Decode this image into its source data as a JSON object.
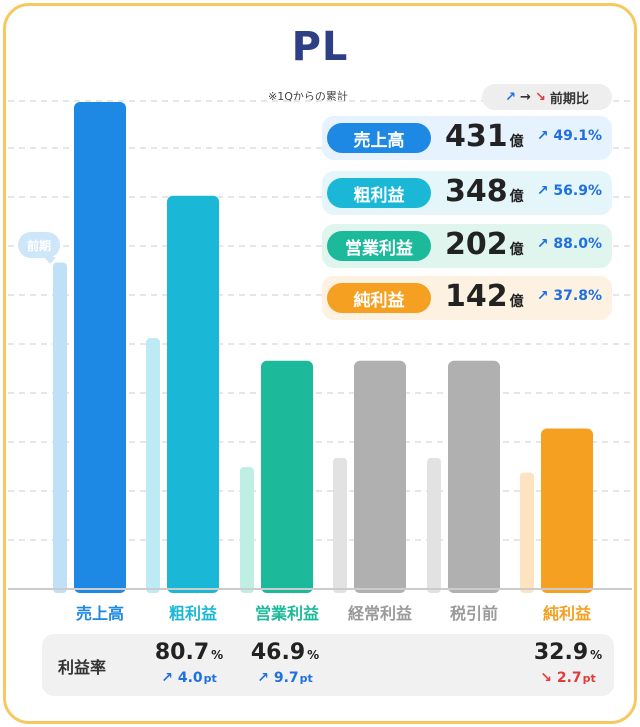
{
  "title": "PL",
  "subtitle": "※1Qからの累計",
  "legend": {
    "prev_label": "前期",
    "yoy_label": "前期比",
    "arrow_up": "↗",
    "arrow_flat": "→",
    "arrow_down": "↘"
  },
  "unit": "億",
  "summary": [
    {
      "label": "売上高",
      "value": "431",
      "unit": "億",
      "change": "49.1%",
      "color": "#1e88e5",
      "bg": "#e6f2fd"
    },
    {
      "label": "粗利益",
      "value": "348",
      "unit": "億",
      "change": "56.9%",
      "color": "#1ab8d6",
      "bg": "#e4f6fa"
    },
    {
      "label": "営業利益",
      "value": "202",
      "unit": "億",
      "change": "88.0%",
      "color": "#1cb99a",
      "bg": "#e1f5ef"
    },
    {
      "label": "純利益",
      "value": "142",
      "unit": "億",
      "change": "37.8%",
      "color": "#f5a020",
      "bg": "#fdf1e1"
    }
  ],
  "margin": {
    "label": "利益率",
    "items": [
      {
        "value": "80.7",
        "unit": "%",
        "arrow": "↗",
        "change": "4.0",
        "change_unit": "pt",
        "dir": "up"
      },
      {
        "value": "46.9",
        "unit": "%",
        "arrow": "↗",
        "change": "9.7",
        "change_unit": "pt",
        "dir": "up"
      },
      {
        "value": "32.9",
        "unit": "%",
        "arrow": "↘",
        "change": "2.7",
        "change_unit": "pt",
        "dir": "down"
      }
    ]
  },
  "chart_data": {
    "type": "bar",
    "categories": [
      "売上高",
      "粗利益",
      "営業利益",
      "経常利益",
      "税引前",
      "純利益"
    ],
    "series": [
      {
        "name": "前期",
        "values": [
          289,
          222,
          108,
          116,
          116,
          103
        ],
        "colors": [
          "#bfe0f7",
          "#bcebf3",
          "#bfeee4",
          "#e2e2e2",
          "#e2e2e2",
          "#fde3bf"
        ]
      },
      {
        "values": [
          431,
          348,
          202,
          202,
          202,
          142
        ],
        "colors": [
          "#1e88e5",
          "#1ab8d6",
          "#1cb99a",
          "#b0b0b0",
          "#b0b0b0",
          "#f5a020"
        ]
      }
    ],
    "label_colors": [
      "#1e88e5",
      "#1ab8d6",
      "#1cb99a",
      "#9a9a9a",
      "#9a9a9a",
      "#f5a020"
    ],
    "ylim": [
      0,
      431
    ],
    "grid": true
  }
}
